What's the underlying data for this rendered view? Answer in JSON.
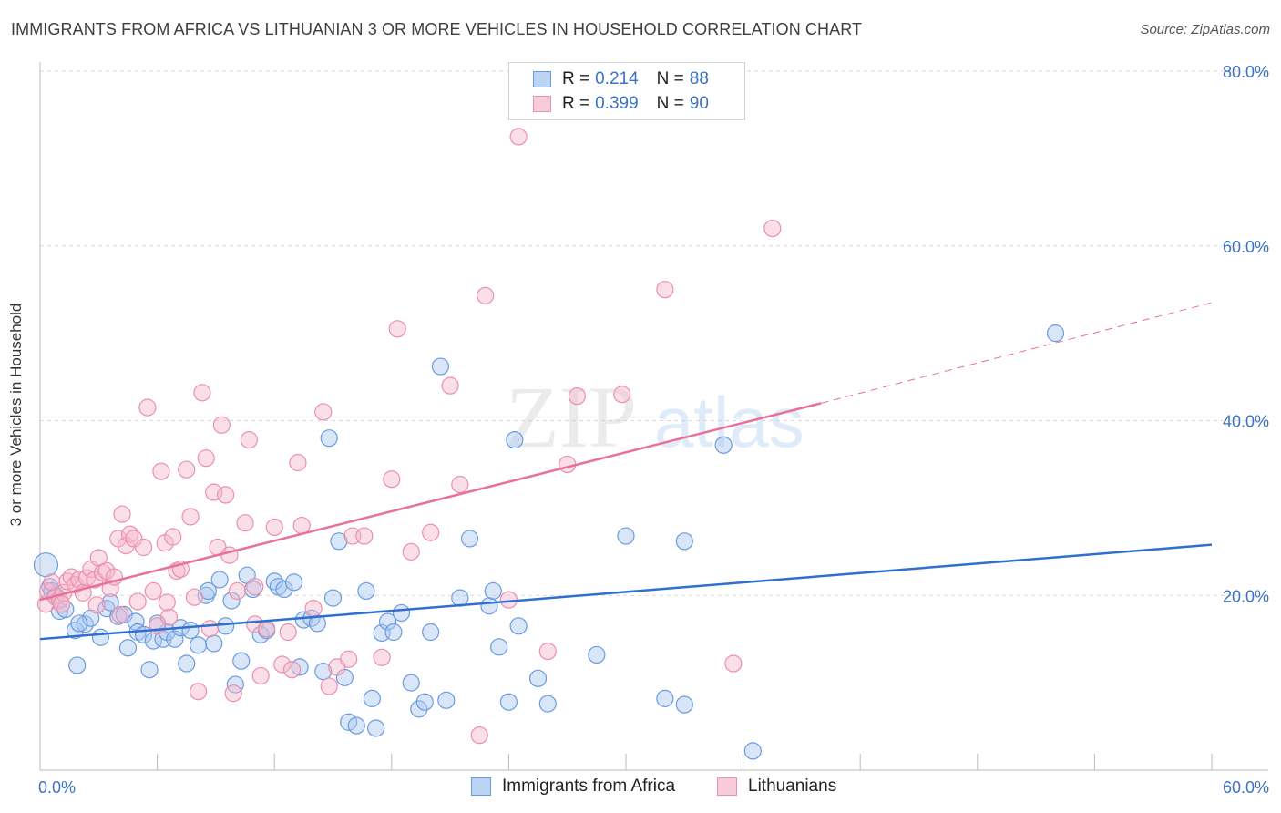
{
  "title": "IMMIGRANTS FROM AFRICA VS LITHUANIAN 3 OR MORE VEHICLES IN HOUSEHOLD CORRELATION CHART",
  "source": "Source: ZipAtlas.com",
  "watermark": {
    "zip": "ZIP",
    "atlas": "atlas"
  },
  "colors": {
    "blue_fill": "#a9c8f0",
    "blue_stroke": "#6a9be0",
    "blue_line": "#2f6fd0",
    "pink_fill": "#f6b8cb",
    "pink_stroke": "#ec8fab",
    "pink_line": "#e8709a",
    "tick_text": "#3b72c4",
    "grid": "#d9d9d9"
  },
  "legend": [
    {
      "r_label": "R =",
      "r_value": "0.214",
      "n_label": "N =",
      "n_value": "88"
    },
    {
      "r_label": "R =",
      "r_value": "0.399",
      "n_label": "N =",
      "n_value": "90"
    }
  ],
  "chart_data": {
    "type": "scatter",
    "title": "IMMIGRANTS FROM AFRICA VS LITHUANIAN 3 OR MORE VEHICLES IN HOUSEHOLD CORRELATION CHART",
    "xlabel": "",
    "ylabel": "3 or more Vehicles in Household",
    "xlim": [
      0,
      60
    ],
    "ylim": [
      0,
      80
    ],
    "x_tick_labels": [
      "0.0%",
      "60.0%"
    ],
    "y_ticks": [
      20,
      40,
      60,
      80
    ],
    "y_tick_labels": [
      "20.0%",
      "40.0%",
      "60.0%",
      "80.0%"
    ],
    "grid": true,
    "legend_position": "bottom-center",
    "series": [
      {
        "name": "Immigrants from Africa",
        "color": "#a9c8f0",
        "trend": {
          "x": [
            0,
            60
          ],
          "y": [
            15.0,
            25.8
          ]
        },
        "points": [
          [
            0.3,
            23.5
          ],
          [
            0.5,
            21.0
          ],
          [
            0.6,
            20.5
          ],
          [
            0.8,
            20.0
          ],
          [
            1.0,
            18.2
          ],
          [
            1.3,
            18.4
          ],
          [
            1.8,
            16.0
          ],
          [
            1.9,
            12.0
          ],
          [
            2.3,
            16.7
          ],
          [
            2.6,
            17.4
          ],
          [
            3.1,
            15.2
          ],
          [
            3.4,
            18.5
          ],
          [
            3.6,
            19.2
          ],
          [
            4.0,
            17.6
          ],
          [
            4.3,
            17.8
          ],
          [
            4.5,
            14.0
          ],
          [
            4.9,
            17.0
          ],
          [
            5.0,
            15.8
          ],
          [
            5.3,
            15.5
          ],
          [
            5.6,
            11.5
          ],
          [
            5.8,
            14.8
          ],
          [
            6.3,
            15.0
          ],
          [
            6.5,
            15.8
          ],
          [
            6.9,
            15.0
          ],
          [
            7.2,
            16.3
          ],
          [
            7.5,
            12.2
          ],
          [
            7.7,
            16.0
          ],
          [
            8.1,
            14.3
          ],
          [
            8.5,
            20.0
          ],
          [
            8.6,
            20.5
          ],
          [
            8.9,
            14.5
          ],
          [
            9.2,
            21.8
          ],
          [
            9.5,
            16.5
          ],
          [
            9.8,
            19.4
          ],
          [
            10.0,
            9.8
          ],
          [
            10.3,
            12.5
          ],
          [
            10.6,
            22.3
          ],
          [
            10.9,
            20.7
          ],
          [
            11.3,
            15.5
          ],
          [
            11.6,
            16.0
          ],
          [
            12.0,
            21.6
          ],
          [
            12.2,
            21.0
          ],
          [
            12.5,
            20.7
          ],
          [
            13.0,
            21.5
          ],
          [
            13.3,
            11.8
          ],
          [
            13.5,
            17.2
          ],
          [
            13.9,
            17.4
          ],
          [
            14.2,
            16.8
          ],
          [
            14.5,
            11.3
          ],
          [
            14.8,
            38.0
          ],
          [
            15.0,
            19.7
          ],
          [
            15.3,
            26.2
          ],
          [
            15.6,
            10.6
          ],
          [
            15.8,
            5.5
          ],
          [
            16.2,
            5.1
          ],
          [
            16.7,
            20.5
          ],
          [
            17.0,
            8.2
          ],
          [
            17.2,
            4.8
          ],
          [
            17.5,
            15.7
          ],
          [
            17.8,
            17.0
          ],
          [
            18.1,
            15.8
          ],
          [
            18.5,
            18.0
          ],
          [
            19.0,
            10.0
          ],
          [
            19.4,
            7.0
          ],
          [
            19.7,
            7.8
          ],
          [
            20.0,
            15.8
          ],
          [
            20.5,
            46.2
          ],
          [
            20.8,
            8.0
          ],
          [
            21.5,
            19.7
          ],
          [
            22.0,
            26.5
          ],
          [
            23.0,
            18.8
          ],
          [
            23.2,
            20.5
          ],
          [
            23.5,
            14.1
          ],
          [
            24.0,
            7.8
          ],
          [
            24.3,
            37.8
          ],
          [
            24.5,
            16.5
          ],
          [
            25.5,
            10.5
          ],
          [
            26.0,
            7.6
          ],
          [
            28.5,
            13.2
          ],
          [
            30.0,
            26.8
          ],
          [
            32.0,
            8.2
          ],
          [
            33.0,
            7.5
          ],
          [
            33.0,
            26.2
          ],
          [
            35.0,
            37.2
          ],
          [
            36.5,
            2.2
          ],
          [
            52.0,
            50.0
          ],
          [
            2.0,
            16.8
          ],
          [
            6.0,
            16.8
          ]
        ]
      },
      {
        "name": "Lithuanians",
        "color": "#f6b8cb",
        "trend": {
          "x": [
            0,
            40
          ],
          "y": [
            19.5,
            42.0
          ]
        },
        "trend_dashed": {
          "x": [
            40,
            60
          ],
          "y": [
            42.0,
            53.5
          ]
        },
        "points": [
          [
            0.3,
            19.0
          ],
          [
            0.4,
            20.5
          ],
          [
            0.6,
            21.5
          ],
          [
            0.8,
            19.8
          ],
          [
            1.0,
            19.5
          ],
          [
            1.2,
            20.3
          ],
          [
            1.4,
            21.6
          ],
          [
            1.6,
            22.1
          ],
          [
            1.8,
            21.2
          ],
          [
            2.0,
            21.8
          ],
          [
            2.2,
            20.3
          ],
          [
            2.4,
            22.0
          ],
          [
            2.6,
            23.0
          ],
          [
            2.8,
            21.8
          ],
          [
            3.0,
            24.3
          ],
          [
            3.2,
            22.6
          ],
          [
            3.4,
            22.8
          ],
          [
            3.6,
            20.8
          ],
          [
            3.8,
            22.1
          ],
          [
            4.0,
            26.5
          ],
          [
            4.2,
            29.3
          ],
          [
            4.4,
            25.7
          ],
          [
            4.6,
            27.0
          ],
          [
            4.8,
            26.5
          ],
          [
            5.0,
            19.3
          ],
          [
            5.3,
            25.5
          ],
          [
            5.5,
            41.5
          ],
          [
            5.8,
            20.5
          ],
          [
            6.0,
            16.5
          ],
          [
            6.2,
            34.2
          ],
          [
            6.4,
            26.0
          ],
          [
            6.6,
            17.5
          ],
          [
            6.8,
            26.7
          ],
          [
            7.0,
            22.8
          ],
          [
            7.2,
            23.0
          ],
          [
            7.5,
            34.4
          ],
          [
            7.7,
            29.0
          ],
          [
            7.9,
            19.8
          ],
          [
            8.1,
            9.0
          ],
          [
            8.3,
            43.2
          ],
          [
            8.5,
            35.7
          ],
          [
            8.7,
            16.2
          ],
          [
            8.9,
            31.8
          ],
          [
            9.1,
            25.5
          ],
          [
            9.3,
            39.5
          ],
          [
            9.5,
            31.5
          ],
          [
            9.7,
            24.6
          ],
          [
            9.9,
            8.8
          ],
          [
            10.1,
            20.5
          ],
          [
            10.5,
            28.3
          ],
          [
            10.7,
            37.8
          ],
          [
            11.0,
            16.7
          ],
          [
            11.3,
            10.8
          ],
          [
            11.6,
            16.2
          ],
          [
            12.0,
            27.8
          ],
          [
            12.4,
            12.1
          ],
          [
            12.7,
            15.8
          ],
          [
            12.9,
            11.5
          ],
          [
            13.2,
            35.2
          ],
          [
            13.4,
            28.0
          ],
          [
            14.0,
            18.5
          ],
          [
            14.5,
            41.0
          ],
          [
            14.8,
            9.6
          ],
          [
            15.2,
            11.8
          ],
          [
            15.8,
            12.7
          ],
          [
            16.0,
            26.8
          ],
          [
            16.6,
            26.8
          ],
          [
            17.5,
            12.9
          ],
          [
            18.0,
            33.3
          ],
          [
            18.3,
            50.5
          ],
          [
            19.0,
            25.0
          ],
          [
            20.0,
            27.2
          ],
          [
            21.0,
            44.0
          ],
          [
            21.5,
            32.7
          ],
          [
            22.5,
            4.0
          ],
          [
            22.8,
            54.3
          ],
          [
            24.0,
            19.5
          ],
          [
            24.5,
            72.5
          ],
          [
            26.0,
            13.6
          ],
          [
            27.0,
            35.0
          ],
          [
            27.5,
            42.8
          ],
          [
            29.8,
            43.0
          ],
          [
            32.0,
            55.0
          ],
          [
            35.5,
            12.2
          ],
          [
            37.5,
            62.0
          ],
          [
            1.1,
            19.0
          ],
          [
            2.9,
            18.9
          ],
          [
            6.5,
            19.2
          ],
          [
            11.0,
            21.0
          ],
          [
            4.1,
            17.8
          ]
        ]
      }
    ]
  }
}
